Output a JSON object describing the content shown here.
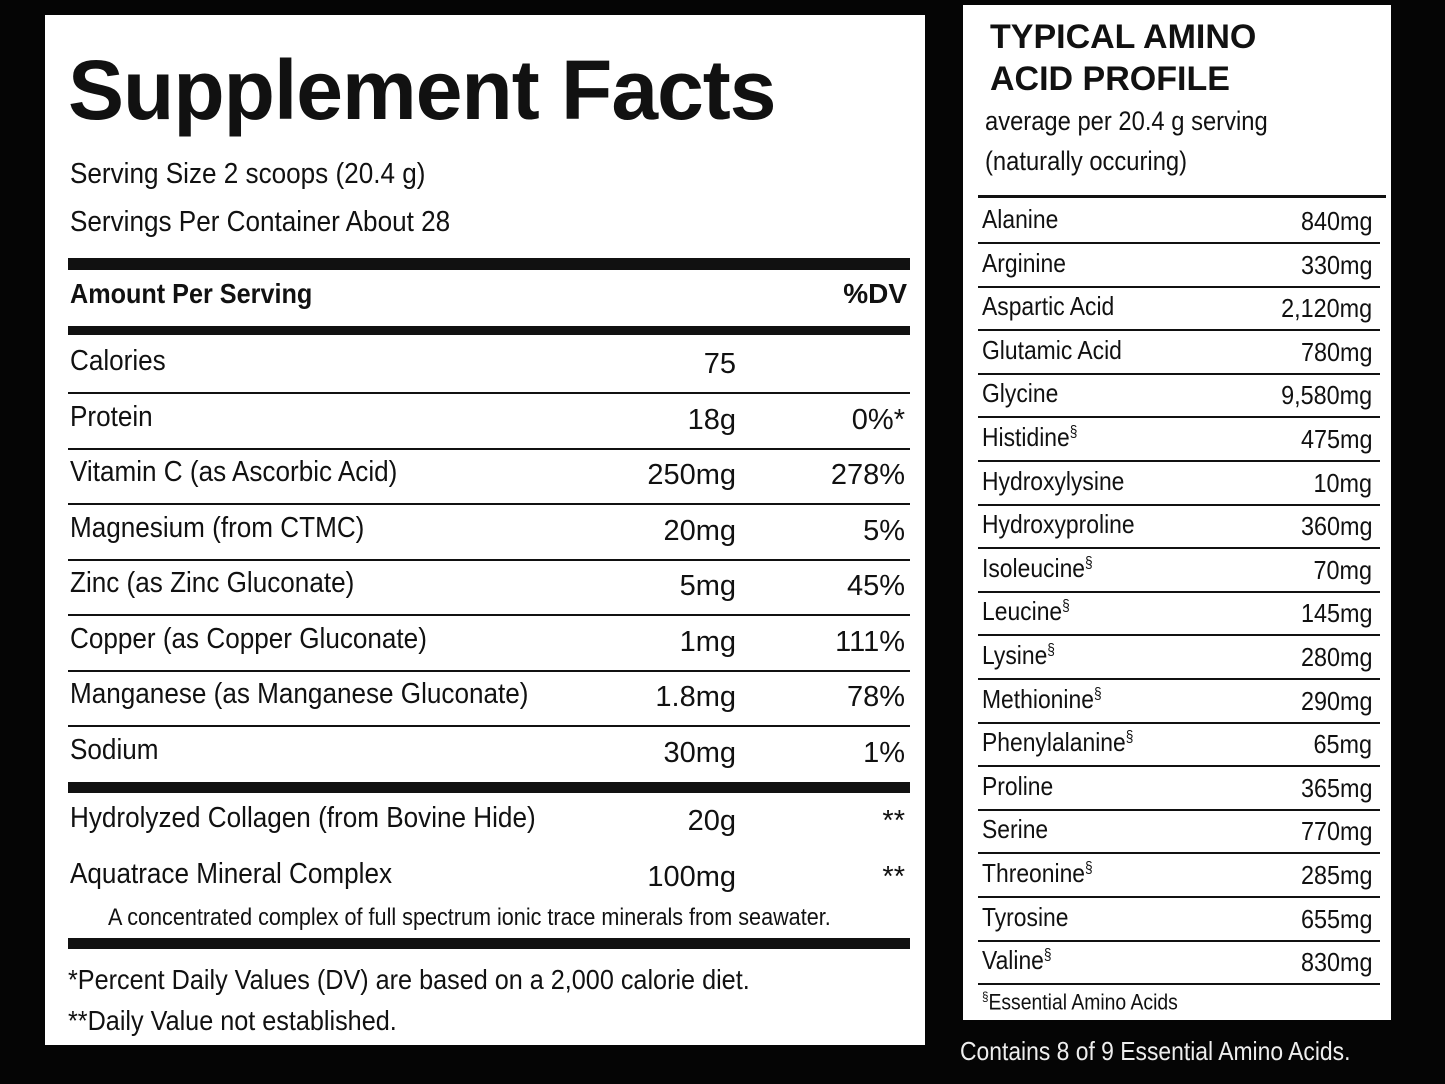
{
  "supplement_facts": {
    "title": "Supplement Facts",
    "serving_size": "Serving Size 2 scoops (20.4 g)",
    "servings_per_container": "Servings Per Container About 28",
    "header": {
      "amount": "Amount Per Serving",
      "dv": "%DV"
    },
    "rows": [
      {
        "name": "Calories",
        "amount": "75"
      },
      {
        "name": "Protein",
        "amount": "18g",
        "dv": "0%*"
      },
      {
        "name": "Vitamin C (as Ascorbic Acid)",
        "amount": "250mg",
        "dv": "278%"
      },
      {
        "name": "Magnesium (from CTMC)",
        "amount": "20mg",
        "dv": "5%"
      },
      {
        "name": "Zinc (as Zinc Gluconate)",
        "amount": "5mg",
        "dv": "45%"
      },
      {
        "name": "Copper (as Copper Gluconate)",
        "amount": "1mg",
        "dv": "111%"
      },
      {
        "name": "Manganese (as Manganese Gluconate)",
        "amount": "1.8mg",
        "dv": "78%"
      },
      {
        "name": "Sodium",
        "amount": "30mg",
        "dv": "1%"
      }
    ],
    "other_rows": [
      {
        "name": "Hydrolyzed Collagen (from Bovine Hide)",
        "amount": "20g",
        "dv": "**"
      },
      {
        "name": "Aquatrace Mineral Complex",
        "amount": "100mg",
        "dv": "**",
        "note": "A concentrated complex of full spectrum ionic trace minerals from seawater."
      }
    ],
    "footnotes": [
      "*Percent Daily Values (DV) are based on a 2,000 calorie diet.",
      "**Daily Value not established."
    ]
  },
  "amino_profile": {
    "title": [
      "TYPICAL AMINO",
      "ACID PROFILE"
    ],
    "subtitle": [
      "average per 20.4 g serving",
      "(naturally occuring)"
    ],
    "rows": [
      {
        "name": "Alanine",
        "amount": "840mg"
      },
      {
        "name": "Arginine",
        "amount": "330mg"
      },
      {
        "name": "Aspartic Acid",
        "amount": "2,120mg"
      },
      {
        "name": "Glutamic Acid",
        "amount": "780mg"
      },
      {
        "name": "Glycine",
        "amount": "9,580mg"
      },
      {
        "name": "Histidine",
        "mark": "§",
        "amount": "475mg"
      },
      {
        "name": "Hydroxylysine",
        "amount": "10mg"
      },
      {
        "name": "Hydroxyproline",
        "amount": "360mg"
      },
      {
        "name": "Isoleucine",
        "mark": "§",
        "amount": "70mg"
      },
      {
        "name": "Leucine",
        "mark": "§",
        "amount": "145mg"
      },
      {
        "name": "Lysine",
        "mark": "§",
        "amount": "280mg"
      },
      {
        "name": "Methionine",
        "mark": "§",
        "amount": "290mg"
      },
      {
        "name": "Phenylalanine",
        "mark": "§",
        "amount": "65mg"
      },
      {
        "name": "Proline",
        "amount": "365mg"
      },
      {
        "name": "Serine",
        "amount": "770mg"
      },
      {
        "name": "Threonine",
        "mark": "§",
        "amount": "285mg"
      },
      {
        "name": "Tyrosine",
        "amount": "655mg"
      },
      {
        "name": "Valine",
        "mark": "§",
        "amount": "830mg"
      }
    ],
    "footnote": {
      "mark": "§",
      "text": "Essential Amino Acids"
    },
    "bottom_note": "Contains 8 of 9 Essential Amino Acids."
  }
}
